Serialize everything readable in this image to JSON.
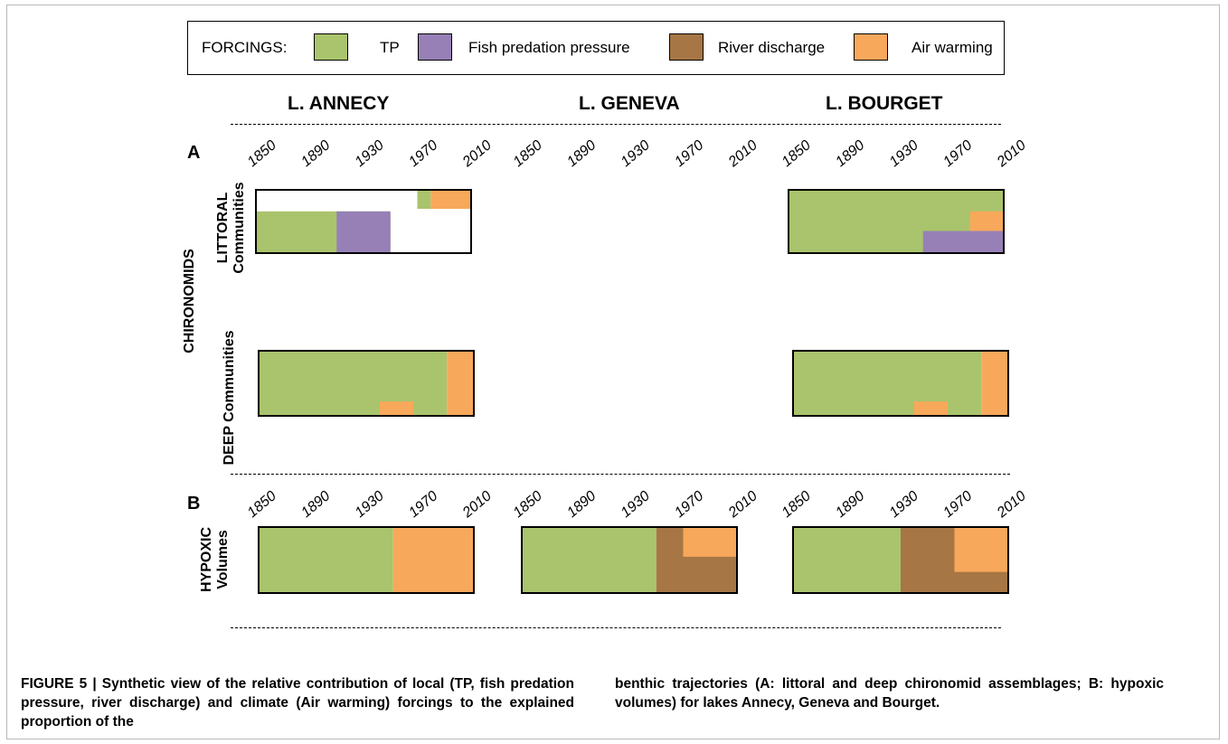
{
  "legend": {
    "title": "FORCINGS:",
    "items": [
      {
        "label": "TP",
        "color": "#a9c46c"
      },
      {
        "label": "Fish predation pressure",
        "color": "#9680b6"
      },
      {
        "label": "River discharge",
        "color": "#a77645"
      },
      {
        "label": "Air warming",
        "color": "#f8a85b"
      }
    ]
  },
  "lakes": [
    "L. ANNECY",
    "L. GENEVA",
    "L. BOURGET"
  ],
  "panels": {
    "a": "A",
    "b": "B"
  },
  "row_labels": {
    "chironomids": "CHIRONOMIDS",
    "littoral_1": "LITTORAL",
    "littoral_2": "Communities",
    "deep": "DEEP Communities",
    "hypoxic_1": "HYPOXIC",
    "hypoxic_2": "Volumes"
  },
  "chart_data": {
    "type": "area",
    "x_ticks": [
      "1850",
      "1890",
      "1930",
      "1970",
      "2010"
    ],
    "xlim": [
      1850,
      2010
    ],
    "y_range": [
      0,
      1
    ],
    "rows": [
      {
        "row": "littoral",
        "lakes": [
          {
            "lake": "L. ANNECY",
            "blocks": [
              {
                "forcing": "TP",
                "from": 1850,
                "to": 1950,
                "y0": 0,
                "y1": 0.66
              },
              {
                "forcing": "Fish predation pressure",
                "from": 1950,
                "to": 1910,
                "y0": 0,
                "y1": 0.66
              },
              {
                "forcing": "TP",
                "from": 1970,
                "to": 1980,
                "y0": 0.7,
                "y1": 1
              },
              {
                "forcing": "Air warming",
                "from": 1980,
                "to": 2010,
                "y0": 0.7,
                "y1": 1
              }
            ]
          },
          {
            "lake": "L. GENEVA",
            "blocks": []
          },
          {
            "lake": "L. BOURGET",
            "blocks": [
              {
                "forcing": "TP",
                "from": 1850,
                "to": 2010,
                "y0": 0,
                "y1": 1
              },
              {
                "forcing": "Air warming",
                "from": 1985,
                "to": 2010,
                "y0": 0.35,
                "y1": 0.66
              },
              {
                "forcing": "Fish predation pressure",
                "from": 1950,
                "to": 2010,
                "y0": 0,
                "y1": 0.35
              }
            ]
          }
        ]
      },
      {
        "row": "deep",
        "lakes": [
          {
            "lake": "L. ANNECY",
            "blocks": [
              {
                "forcing": "TP",
                "from": 1850,
                "to": 1990,
                "y0": 0,
                "y1": 1
              },
              {
                "forcing": "Air warming",
                "from": 1990,
                "to": 2010,
                "y0": 0,
                "y1": 1
              },
              {
                "forcing": "Air warming",
                "from": 1940,
                "to": 1965,
                "y0": 0,
                "y1": 0.22
              }
            ]
          },
          {
            "lake": "L. GENEVA",
            "blocks": []
          },
          {
            "lake": "L. BOURGET",
            "blocks": [
              {
                "forcing": "TP",
                "from": 1850,
                "to": 1990,
                "y0": 0,
                "y1": 1
              },
              {
                "forcing": "Air warming",
                "from": 1990,
                "to": 2010,
                "y0": 0,
                "y1": 1
              },
              {
                "forcing": "Air warming",
                "from": 1940,
                "to": 1965,
                "y0": 0,
                "y1": 0.22
              }
            ]
          }
        ]
      },
      {
        "row": "hypoxic",
        "lakes": [
          {
            "lake": "L. ANNECY",
            "blocks": [
              {
                "forcing": "TP",
                "from": 1850,
                "to": 1950,
                "y0": 0,
                "y1": 1
              },
              {
                "forcing": "Air warming",
                "from": 1950,
                "to": 2010,
                "y0": 0,
                "y1": 1
              }
            ]
          },
          {
            "lake": "L. GENEVA",
            "blocks": [
              {
                "forcing": "TP",
                "from": 1850,
                "to": 1950,
                "y0": 0,
                "y1": 1
              },
              {
                "forcing": "River discharge",
                "from": 1950,
                "to": 2010,
                "y0": 0,
                "y1": 1
              },
              {
                "forcing": "Air warming",
                "from": 1970,
                "to": 2010,
                "y0": 0.55,
                "y1": 1
              }
            ]
          },
          {
            "lake": "L. BOURGET",
            "blocks": [
              {
                "forcing": "TP",
                "from": 1850,
                "to": 1930,
                "y0": 0,
                "y1": 1
              },
              {
                "forcing": "River discharge",
                "from": 1930,
                "to": 2010,
                "y0": 0,
                "y1": 1
              },
              {
                "forcing": "Air warming",
                "from": 1970,
                "to": 2010,
                "y0": 0.32,
                "y1": 1
              }
            ]
          }
        ]
      }
    ]
  },
  "caption": {
    "left": "FIGURE 5 | Synthetic view of the relative contribution of local (TP, fish predation pressure, river discharge) and climate (Air warming) forcings to the explained proportion of the",
    "right": "benthic trajectories (A: littoral and deep chironomid assemblages; B: hypoxic volumes) for lakes Annecy, Geneva and Bourget."
  }
}
